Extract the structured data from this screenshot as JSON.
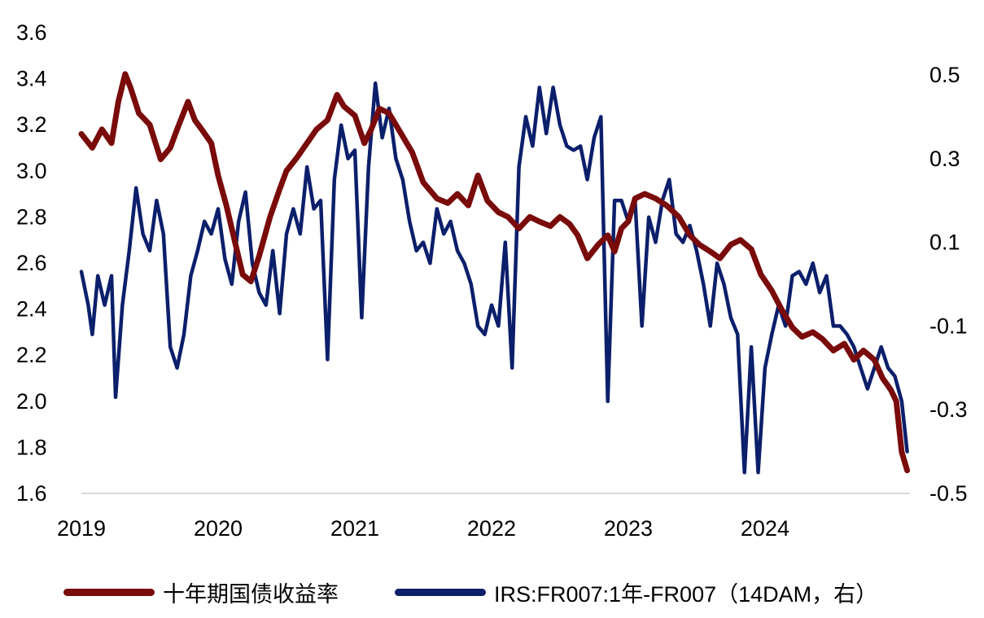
{
  "chart_data": {
    "type": "line",
    "title": "",
    "x_tick_labels": [
      "2019",
      "2020",
      "2021",
      "2022",
      "2023",
      "2024"
    ],
    "y_left_ticks": [
      "3.6",
      "3.4",
      "3.2",
      "3.0",
      "2.8",
      "2.6",
      "2.4",
      "2.2",
      "2.0",
      "1.8",
      "1.6"
    ],
    "y_right_ticks": [
      "0.5",
      "0.3",
      "0.1",
      "-0.1",
      "-0.3",
      "-0.5"
    ],
    "xlim": [
      2019.0,
      2025.06
    ],
    "ylim_left": [
      1.6,
      3.6
    ],
    "ylim_right": [
      -0.5,
      0.6
    ],
    "grid": false,
    "legend_position": "bottom",
    "series": [
      {
        "name": "十年期国债收益率",
        "axis": "left",
        "color": "#7a0b0b",
        "x": [
          2019.0,
          2019.08,
          2019.15,
          2019.22,
          2019.27,
          2019.32,
          2019.36,
          2019.42,
          2019.5,
          2019.58,
          2019.65,
          2019.7,
          2019.78,
          2019.83,
          2019.88,
          2019.95,
          2020.0,
          2020.06,
          2020.12,
          2020.18,
          2020.24,
          2020.3,
          2020.38,
          2020.45,
          2020.5,
          2020.58,
          2020.65,
          2020.72,
          2020.8,
          2020.87,
          2020.92,
          2021.0,
          2021.07,
          2021.12,
          2021.18,
          2021.25,
          2021.33,
          2021.42,
          2021.5,
          2021.6,
          2021.68,
          2021.75,
          2021.83,
          2021.9,
          2021.97,
          2022.05,
          2022.12,
          2022.2,
          2022.28,
          2022.35,
          2022.43,
          2022.5,
          2022.57,
          2022.63,
          2022.7,
          2022.78,
          2022.85,
          2022.9,
          2022.95,
          2023.0,
          2023.05,
          2023.12,
          2023.2,
          2023.28,
          2023.37,
          2023.45,
          2023.52,
          2023.6,
          2023.67,
          2023.75,
          2023.82,
          2023.9,
          2023.97,
          2024.05,
          2024.12,
          2024.2,
          2024.27,
          2024.35,
          2024.42,
          2024.5,
          2024.58,
          2024.65,
          2024.72,
          2024.8,
          2024.86,
          2024.92,
          2024.96,
          2025.0,
          2025.04
        ],
        "y": [
          3.16,
          3.1,
          3.18,
          3.12,
          3.3,
          3.42,
          3.36,
          3.25,
          3.2,
          3.05,
          3.1,
          3.18,
          3.3,
          3.22,
          3.18,
          3.12,
          2.98,
          2.85,
          2.7,
          2.55,
          2.52,
          2.63,
          2.8,
          2.92,
          3.0,
          3.06,
          3.12,
          3.18,
          3.22,
          3.33,
          3.28,
          3.24,
          3.12,
          3.18,
          3.27,
          3.25,
          3.17,
          3.08,
          2.95,
          2.88,
          2.86,
          2.9,
          2.85,
          2.98,
          2.87,
          2.82,
          2.8,
          2.75,
          2.8,
          2.78,
          2.76,
          2.8,
          2.77,
          2.72,
          2.62,
          2.68,
          2.72,
          2.65,
          2.75,
          2.78,
          2.88,
          2.9,
          2.88,
          2.85,
          2.8,
          2.72,
          2.68,
          2.65,
          2.62,
          2.68,
          2.7,
          2.66,
          2.55,
          2.48,
          2.4,
          2.32,
          2.28,
          2.3,
          2.27,
          2.22,
          2.25,
          2.18,
          2.22,
          2.18,
          2.1,
          2.05,
          2.0,
          1.78,
          1.7
        ]
      },
      {
        "name": "IRS:FR007:1年-FR007（14DAM，右）",
        "axis": "right",
        "color": "#0b1f6b",
        "x": [
          2019.0,
          2019.05,
          2019.08,
          2019.12,
          2019.17,
          2019.22,
          2019.25,
          2019.3,
          2019.35,
          2019.4,
          2019.45,
          2019.5,
          2019.55,
          2019.6,
          2019.65,
          2019.7,
          2019.75,
          2019.8,
          2019.85,
          2019.9,
          2019.95,
          2020.0,
          2020.05,
          2020.1,
          2020.15,
          2020.2,
          2020.25,
          2020.3,
          2020.35,
          2020.4,
          2020.45,
          2020.5,
          2020.55,
          2020.6,
          2020.65,
          2020.7,
          2020.75,
          2020.8,
          2020.85,
          2020.9,
          2020.95,
          2021.0,
          2021.05,
          2021.1,
          2021.15,
          2021.2,
          2021.25,
          2021.3,
          2021.35,
          2021.4,
          2021.45,
          2021.5,
          2021.55,
          2021.6,
          2021.65,
          2021.7,
          2021.75,
          2021.8,
          2021.85,
          2021.9,
          2021.95,
          2022.0,
          2022.05,
          2022.1,
          2022.15,
          2022.2,
          2022.25,
          2022.3,
          2022.35,
          2022.4,
          2022.45,
          2022.5,
          2022.55,
          2022.6,
          2022.65,
          2022.7,
          2022.75,
          2022.8,
          2022.85,
          2022.9,
          2022.95,
          2023.0,
          2023.05,
          2023.1,
          2023.15,
          2023.2,
          2023.25,
          2023.3,
          2023.35,
          2023.4,
          2023.45,
          2023.5,
          2023.55,
          2023.6,
          2023.65,
          2023.7,
          2023.75,
          2023.8,
          2023.85,
          2023.9,
          2023.95,
          2024.0,
          2024.05,
          2024.1,
          2024.15,
          2024.2,
          2024.25,
          2024.3,
          2024.35,
          2024.4,
          2024.45,
          2024.5,
          2024.55,
          2024.6,
          2024.65,
          2024.7,
          2024.75,
          2024.8,
          2024.85,
          2024.9,
          2024.95,
          2025.0,
          2025.04
        ],
        "y": [
          0.03,
          -0.05,
          -0.12,
          0.02,
          -0.05,
          0.02,
          -0.27,
          -0.05,
          0.08,
          0.23,
          0.12,
          0.08,
          0.2,
          0.12,
          -0.15,
          -0.2,
          -0.12,
          0.02,
          0.08,
          0.15,
          0.12,
          0.18,
          0.06,
          0.0,
          0.15,
          0.22,
          0.05,
          -0.02,
          -0.05,
          0.08,
          -0.07,
          0.12,
          0.18,
          0.12,
          0.28,
          0.18,
          0.2,
          -0.18,
          0.25,
          0.38,
          0.3,
          0.32,
          -0.08,
          0.28,
          0.48,
          0.35,
          0.42,
          0.3,
          0.25,
          0.15,
          0.08,
          0.1,
          0.05,
          0.18,
          0.12,
          0.15,
          0.08,
          0.05,
          0.0,
          -0.1,
          -0.12,
          -0.05,
          -0.1,
          0.1,
          -0.2,
          0.28,
          0.4,
          0.33,
          0.47,
          0.36,
          0.47,
          0.38,
          0.33,
          0.32,
          0.33,
          0.25,
          0.35,
          0.4,
          -0.28,
          0.2,
          0.2,
          0.15,
          0.2,
          -0.1,
          0.16,
          0.1,
          0.2,
          0.25,
          0.12,
          0.1,
          0.14,
          0.08,
          0.0,
          -0.1,
          0.05,
          0.0,
          -0.08,
          -0.12,
          -0.45,
          -0.15,
          -0.45,
          -0.2,
          -0.12,
          -0.05,
          -0.1,
          0.02,
          0.03,
          0.0,
          0.05,
          -0.02,
          0.02,
          -0.1,
          -0.1,
          -0.12,
          -0.15,
          -0.2,
          -0.25,
          -0.2,
          -0.15,
          -0.2,
          -0.22,
          -0.28,
          -0.4
        ]
      }
    ]
  },
  "legend": {
    "series_1_label": "十年期国债收益率",
    "series_2_label": "IRS:FR007:1年-FR007（14DAM，右）"
  }
}
